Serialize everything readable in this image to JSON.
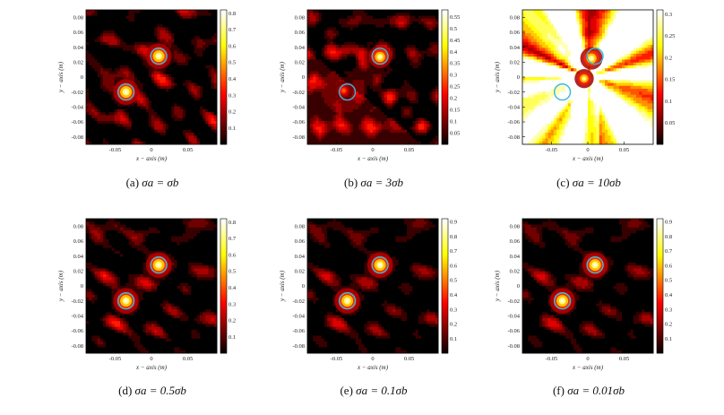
{
  "chart_data": [
    {
      "type": "heatmap",
      "panel_label": "(a)",
      "caption": "σa = σb",
      "xlabel": "x − axis (m)",
      "ylabel": "y − axis (m)",
      "xticks": [
        "-0.05",
        "0",
        "0.05"
      ],
      "xtick_values": [
        -0.05,
        0,
        0.05
      ],
      "yticks": [
        "0.08",
        "0.06",
        "0.04",
        "0.02",
        "0",
        "-0.02",
        "-0.04",
        "-0.06",
        "-0.08"
      ],
      "ytick_values": [
        0.08,
        0.06,
        0.04,
        0.02,
        0,
        -0.02,
        -0.04,
        -0.06,
        -0.08
      ],
      "xlim": [
        -0.09,
        0.09
      ],
      "ylim": [
        -0.09,
        0.09
      ],
      "colorbar_ticks": [
        "0.8",
        "0.7",
        "0.6",
        "0.5",
        "0.4",
        "0.3",
        "0.2",
        "0.1"
      ],
      "colorbar_values": [
        0.8,
        0.7,
        0.6,
        0.5,
        0.4,
        0.3,
        0.2,
        0.1
      ],
      "colorbar_range": [
        0,
        0.82
      ],
      "colormap": "hot",
      "peaks": [
        {
          "x": 0.01,
          "y": 0.028,
          "value": 0.8,
          "radius": 0.008
        },
        {
          "x": -0.035,
          "y": -0.02,
          "value": 0.8,
          "radius": 0.008
        }
      ],
      "true_targets": [
        {
          "x": 0.01,
          "y": 0.028,
          "radius": 0.011
        },
        {
          "x": -0.035,
          "y": -0.02,
          "radius": 0.011
        }
      ],
      "background_level": 0.18,
      "seed": 11,
      "style": "ripple"
    },
    {
      "type": "heatmap",
      "panel_label": "(b)",
      "caption": "σa = 3σb",
      "xlabel": "x − axis (m)",
      "ylabel": "y − axis (m)",
      "xticks": [
        "-0.05",
        "0",
        "0.05"
      ],
      "xtick_values": [
        -0.05,
        0,
        0.05
      ],
      "yticks": [
        "0.08",
        "0.06",
        "0.04",
        "0.02",
        "0",
        "-0.02",
        "-0.04",
        "-0.06",
        "-0.08"
      ],
      "ytick_values": [
        0.08,
        0.06,
        0.04,
        0.02,
        0,
        -0.02,
        -0.04,
        -0.06,
        -0.08
      ],
      "xlim": [
        -0.09,
        0.09
      ],
      "ylim": [
        -0.09,
        0.09
      ],
      "colorbar_ticks": [
        "0.55",
        "0.5",
        "0.45",
        "0.4",
        "0.35",
        "0.3",
        "0.25",
        "0.2",
        "0.15",
        "0.1",
        "0.05"
      ],
      "colorbar_values": [
        0.55,
        0.5,
        0.45,
        0.4,
        0.35,
        0.3,
        0.25,
        0.2,
        0.15,
        0.1,
        0.05
      ],
      "colorbar_range": [
        0,
        0.58
      ],
      "colormap": "hot",
      "peaks": [
        {
          "x": 0.01,
          "y": 0.027,
          "value": 0.55,
          "radius": 0.007
        },
        {
          "x": -0.04,
          "y": -0.018,
          "value": 0.3,
          "radius": 0.006
        }
      ],
      "true_targets": [
        {
          "x": 0.01,
          "y": 0.028,
          "radius": 0.011
        },
        {
          "x": -0.035,
          "y": -0.02,
          "radius": 0.011
        }
      ],
      "background_level": 0.14,
      "seed": 23,
      "style": "streaks"
    },
    {
      "type": "heatmap",
      "panel_label": "(c)",
      "caption": "σa = 10σb",
      "xlabel": "x − axis (m)",
      "ylabel": "y − axis (m)",
      "xticks": [
        "-0.05",
        "0",
        "0.05"
      ],
      "xtick_values": [
        -0.05,
        0,
        0.05
      ],
      "yticks": [
        "0.08",
        "0.06",
        "0.04",
        "0.02",
        "0",
        "-0.02",
        "-0.04",
        "-0.06",
        "-0.08"
      ],
      "ytick_values": [
        0.08,
        0.06,
        0.04,
        0.02,
        0,
        -0.02,
        -0.04,
        -0.06,
        -0.08
      ],
      "xlim": [
        -0.09,
        0.09
      ],
      "ylim": [
        -0.09,
        0.09
      ],
      "colorbar_ticks": [
        "0.3",
        "0.25",
        "0.2",
        "0.15",
        "0.1",
        "0.05"
      ],
      "colorbar_values": [
        0.3,
        0.25,
        0.2,
        0.15,
        0.1,
        0.05
      ],
      "colorbar_range": [
        0,
        0.31
      ],
      "colormap": "hot",
      "peaks": [
        {
          "x": 0.005,
          "y": 0.025,
          "value": 0.3,
          "radius": 0.007
        },
        {
          "x": -0.005,
          "y": -0.002,
          "value": 0.28,
          "radius": 0.006
        }
      ],
      "true_targets": [
        {
          "x": 0.01,
          "y": 0.028,
          "radius": 0.011
        },
        {
          "x": -0.035,
          "y": -0.02,
          "radius": 0.011
        }
      ],
      "background_level": 0.12,
      "seed": 37,
      "style": "rays"
    },
    {
      "type": "heatmap",
      "panel_label": "(d)",
      "caption": "σa = 0.5σb",
      "xlabel": "x − axis (m)",
      "ylabel": "y − axis (m)",
      "xticks": [
        "-0.05",
        "0",
        "0.05"
      ],
      "xtick_values": [
        -0.05,
        0,
        0.05
      ],
      "yticks": [
        "0.08",
        "0.06",
        "0.04",
        "0.02",
        "0",
        "-0.02",
        "-0.04",
        "-0.06",
        "-0.08"
      ],
      "ytick_values": [
        0.08,
        0.06,
        0.04,
        0.02,
        0,
        -0.02,
        -0.04,
        -0.06,
        -0.08
      ],
      "xlim": [
        -0.09,
        0.09
      ],
      "ylim": [
        -0.09,
        0.09
      ],
      "colorbar_ticks": [
        "0.8",
        "0.7",
        "0.6",
        "0.5",
        "0.4",
        "0.3",
        "0.2",
        "0.1"
      ],
      "colorbar_values": [
        0.8,
        0.7,
        0.6,
        0.5,
        0.4,
        0.3,
        0.2,
        0.1
      ],
      "colorbar_range": [
        0,
        0.82
      ],
      "colormap": "hot",
      "peaks": [
        {
          "x": 0.01,
          "y": 0.028,
          "value": 0.8,
          "radius": 0.008
        },
        {
          "x": -0.035,
          "y": -0.02,
          "value": 0.8,
          "radius": 0.008
        }
      ],
      "true_targets": [
        {
          "x": 0.01,
          "y": 0.028,
          "radius": 0.011
        },
        {
          "x": -0.035,
          "y": -0.02,
          "radius": 0.011
        }
      ],
      "background_level": 0.16,
      "seed": 53,
      "style": "ripple"
    },
    {
      "type": "heatmap",
      "panel_label": "(e)",
      "caption": "σa = 0.1σb",
      "xlabel": "x − axis (m)",
      "ylabel": "y − axis (m)",
      "xticks": [
        "-0.05",
        "0",
        "0.05"
      ],
      "xtick_values": [
        -0.05,
        0,
        0.05
      ],
      "yticks": [
        "0.08",
        "0.06",
        "0.04",
        "0.02",
        "0",
        "-0.02",
        "-0.04",
        "-0.06",
        "-0.08"
      ],
      "ytick_values": [
        0.08,
        0.06,
        0.04,
        0.02,
        0,
        -0.02,
        -0.04,
        -0.06,
        -0.08
      ],
      "xlim": [
        -0.09,
        0.09
      ],
      "ylim": [
        -0.09,
        0.09
      ],
      "colorbar_ticks": [
        "0.9",
        "0.8",
        "0.7",
        "0.6",
        "0.5",
        "0.4",
        "0.3",
        "0.2",
        "0.1"
      ],
      "colorbar_values": [
        0.9,
        0.8,
        0.7,
        0.6,
        0.5,
        0.4,
        0.3,
        0.2,
        0.1
      ],
      "colorbar_range": [
        0,
        0.92
      ],
      "colormap": "hot",
      "peaks": [
        {
          "x": 0.01,
          "y": 0.028,
          "value": 0.9,
          "radius": 0.008
        },
        {
          "x": -0.035,
          "y": -0.02,
          "value": 0.9,
          "radius": 0.008
        }
      ],
      "true_targets": [
        {
          "x": 0.01,
          "y": 0.028,
          "radius": 0.011
        },
        {
          "x": -0.035,
          "y": -0.02,
          "radius": 0.011
        }
      ],
      "background_level": 0.16,
      "seed": 53,
      "style": "ripple"
    },
    {
      "type": "heatmap",
      "panel_label": "(f)",
      "caption": "σa = 0.01σb",
      "xlabel": "x − axis (m)",
      "ylabel": "y − axis (m)",
      "xticks": [
        "-0.05",
        "0",
        "0.05"
      ],
      "xtick_values": [
        -0.05,
        0,
        0.05
      ],
      "yticks": [
        "0.08",
        "0.06",
        "0.04",
        "0.02",
        "0",
        "-0.02",
        "-0.04",
        "-0.06",
        "-0.08"
      ],
      "ytick_values": [
        0.08,
        0.06,
        0.04,
        0.02,
        0,
        -0.02,
        -0.04,
        -0.06,
        -0.08
      ],
      "xlim": [
        -0.09,
        0.09
      ],
      "ylim": [
        -0.09,
        0.09
      ],
      "colorbar_ticks": [
        "0.9",
        "0.8",
        "0.7",
        "0.6",
        "0.5",
        "0.4",
        "0.3",
        "0.2",
        "0.1"
      ],
      "colorbar_values": [
        0.9,
        0.8,
        0.7,
        0.6,
        0.5,
        0.4,
        0.3,
        0.2,
        0.1
      ],
      "colorbar_range": [
        0,
        0.92
      ],
      "colormap": "hot",
      "peaks": [
        {
          "x": 0.01,
          "y": 0.028,
          "value": 0.9,
          "radius": 0.008
        },
        {
          "x": -0.035,
          "y": -0.02,
          "value": 0.9,
          "radius": 0.008
        }
      ],
      "true_targets": [
        {
          "x": 0.01,
          "y": 0.028,
          "radius": 0.011
        },
        {
          "x": -0.035,
          "y": -0.02,
          "radius": 0.011
        }
      ],
      "background_level": 0.16,
      "seed": 53,
      "style": "ripple"
    }
  ],
  "colors": {
    "target_circle": "#39b8d8",
    "contour": "#e8b0a0",
    "frame": "#000000"
  }
}
